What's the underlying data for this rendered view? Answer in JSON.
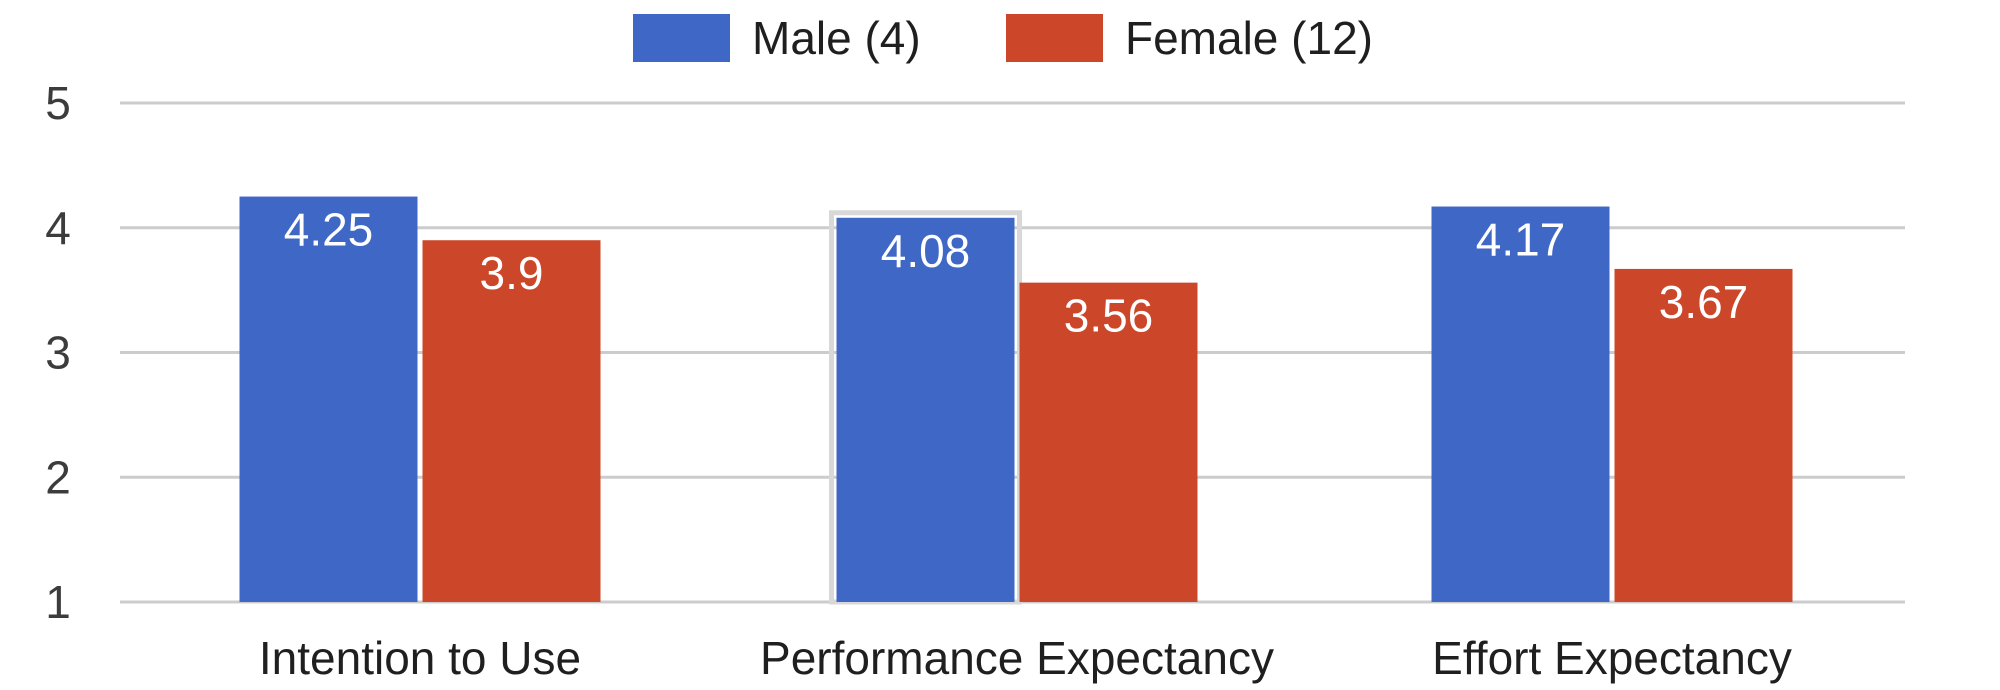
{
  "chart_data": {
    "type": "bar",
    "categories": [
      "Intention to Use",
      "Performance Expectancy",
      "Effort Expectancy"
    ],
    "series": [
      {
        "name": "Male (4)",
        "values": [
          4.25,
          4.08,
          4.17
        ],
        "color": "#3f67c6",
        "label_text": [
          "4.25",
          "4.08",
          "4.17"
        ]
      },
      {
        "name": "Female (12)",
        "values": [
          3.9,
          3.56,
          3.67
        ],
        "color": "#cc4729",
        "label_text": [
          "3.9",
          "3.56",
          "3.67"
        ]
      }
    ],
    "ylim": [
      1,
      5
    ],
    "yticks": [
      {
        "value": 1,
        "label": "1"
      },
      {
        "value": 2,
        "label": "2"
      },
      {
        "value": 3,
        "label": "3"
      },
      {
        "value": 4,
        "label": "4"
      },
      {
        "value": 5,
        "label": "5"
      }
    ],
    "grid": true,
    "legend_position": "top-center",
    "title": "",
    "xlabel": "",
    "ylabel": ""
  },
  "colors": {
    "grid": "#cccccc",
    "highlight_border": "#d8d8d8"
  }
}
